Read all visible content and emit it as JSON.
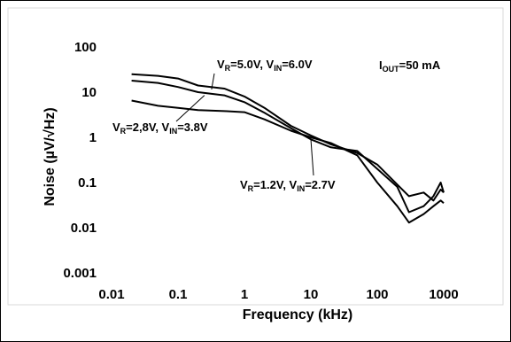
{
  "chart_data": {
    "type": "line",
    "title": "",
    "xlabel": "Frequency (kHz)",
    "ylabel": "Noise (µV/√Hz)",
    "x_scale": "log",
    "y_scale": "log",
    "xlim": [
      0.01,
      1000
    ],
    "ylim": [
      0.001,
      100
    ],
    "x_ticks": [
      0.01,
      0.1,
      1,
      10,
      100,
      1000
    ],
    "x_tick_labels": [
      "0.01",
      "0.1",
      "1",
      "10",
      "100",
      "1000"
    ],
    "y_ticks": [
      0.001,
      0.01,
      0.1,
      1,
      10,
      100
    ],
    "y_tick_labels": [
      "0.001",
      "0.01",
      "0.1",
      "1",
      "10",
      "100"
    ],
    "grid": false,
    "line_color": "#000000",
    "annotations": [
      {
        "main": "I",
        "sub": "OUT",
        "tail": "=50 mA"
      },
      {
        "parts": [
          [
            "V",
            ""
          ],
          [
            "R",
            "sub"
          ],
          [
            "=5.0V, V",
            ""
          ],
          [
            "IN",
            "sub"
          ],
          [
            "=6.0V",
            ""
          ]
        ]
      },
      {
        "parts": [
          [
            "V",
            ""
          ],
          [
            "R",
            "sub"
          ],
          [
            "=2,8V, V",
            ""
          ],
          [
            "IN",
            "sub"
          ],
          [
            "=3.8V",
            ""
          ]
        ]
      },
      {
        "parts": [
          [
            "V",
            ""
          ],
          [
            "R",
            "sub"
          ],
          [
            "=1.2V, V",
            ""
          ],
          [
            "IN",
            "sub"
          ],
          [
            "=2.7V",
            ""
          ]
        ]
      }
    ],
    "series": [
      {
        "x": [
          0.02,
          0.05,
          0.1,
          0.2,
          0.5,
          1,
          2,
          5,
          10,
          20,
          50,
          100,
          200,
          300,
          500,
          700,
          900,
          1000
        ],
        "y": [
          25,
          23,
          20,
          14,
          12,
          8,
          4.5,
          1.8,
          1.1,
          0.7,
          0.45,
          0.25,
          0.09,
          0.05,
          0.06,
          0.04,
          0.07,
          0.06
        ]
      },
      {
        "x": [
          0.02,
          0.05,
          0.1,
          0.2,
          0.5,
          1,
          2,
          5,
          10,
          20,
          50,
          100,
          200,
          300,
          500,
          700,
          900,
          1000
        ],
        "y": [
          18,
          16,
          13,
          10,
          8.5,
          6,
          3.5,
          1.6,
          0.9,
          0.6,
          0.5,
          0.2,
          0.08,
          0.022,
          0.03,
          0.05,
          0.1,
          0.06
        ]
      },
      {
        "x": [
          0.02,
          0.05,
          0.1,
          0.2,
          0.5,
          1,
          2,
          5,
          10,
          20,
          50,
          100,
          200,
          300,
          500,
          700,
          900,
          1000
        ],
        "y": [
          6.5,
          5,
          4.5,
          4,
          3.8,
          3.6,
          2.5,
          1.4,
          1.0,
          0.75,
          0.4,
          0.1,
          0.03,
          0.013,
          0.02,
          0.03,
          0.04,
          0.035
        ]
      }
    ]
  }
}
